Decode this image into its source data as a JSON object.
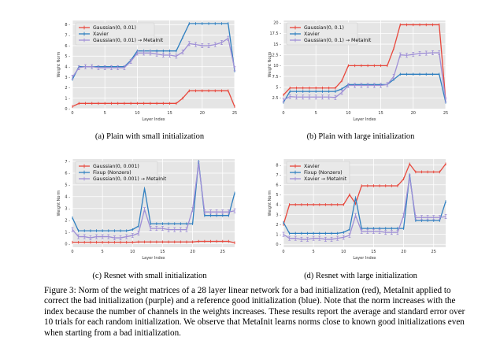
{
  "colors": {
    "red": "#e8483d",
    "blue": "#2f7fc0",
    "purple": "#9f8fd6",
    "plot_bg": "#e5e5e5",
    "grid": "#ffffff"
  },
  "chart_data": [
    {
      "type": "line",
      "caption": "(a) Plain with small initialization",
      "xlabel": "Layer Index",
      "ylabel": "Weight Norm",
      "xlim": [
        0,
        25
      ],
      "ylim": [
        0,
        8.4
      ],
      "xticks": [
        0,
        5,
        10,
        15,
        20,
        25
      ],
      "yticks": [
        0,
        1,
        2,
        3,
        4,
        5,
        6,
        7,
        8
      ],
      "x": [
        0,
        1,
        2,
        3,
        4,
        5,
        6,
        7,
        8,
        9,
        10,
        11,
        12,
        13,
        14,
        15,
        16,
        17,
        18,
        19,
        20,
        21,
        22,
        23,
        24,
        25
      ],
      "series": [
        {
          "name": "Gaussian(0, 0.01)",
          "color": "red",
          "err": false,
          "values": [
            0.2,
            0.5,
            0.5,
            0.5,
            0.5,
            0.5,
            0.5,
            0.5,
            0.5,
            0.5,
            0.5,
            0.5,
            0.5,
            0.5,
            0.5,
            0.5,
            0.5,
            1.0,
            1.7,
            1.7,
            1.7,
            1.7,
            1.7,
            1.7,
            1.7,
            0.2
          ]
        },
        {
          "name": "Xavier",
          "color": "blue",
          "err": false,
          "values": [
            2.8,
            4.0,
            4.0,
            4.0,
            4.0,
            4.0,
            4.0,
            4.0,
            4.0,
            4.6,
            5.5,
            5.5,
            5.5,
            5.5,
            5.5,
            5.5,
            5.5,
            6.8,
            8.1,
            8.1,
            8.1,
            8.1,
            8.1,
            8.1,
            8.1,
            3.6
          ]
        },
        {
          "name": "Gaussian(0, 0.01) → MetaInit",
          "color": "purple",
          "err": true,
          "values": [
            3.0,
            3.9,
            4.0,
            4.0,
            3.9,
            3.9,
            3.9,
            3.9,
            3.9,
            4.5,
            5.3,
            5.3,
            5.3,
            5.2,
            5.1,
            5.1,
            5.0,
            5.4,
            6.2,
            6.1,
            6.0,
            6.0,
            6.1,
            6.3,
            6.7,
            3.8
          ]
        }
      ]
    },
    {
      "type": "line",
      "caption": "(b) Plain with large initialization",
      "xlabel": "Layer Index",
      "ylabel": "Weight Norm",
      "xlim": [
        0,
        25
      ],
      "ylim": [
        0,
        20.5
      ],
      "xticks": [
        0,
        5,
        10,
        15,
        20,
        25
      ],
      "yticks": [
        2.5,
        5.0,
        7.5,
        10.0,
        12.5,
        15.0,
        17.5,
        20.0
      ],
      "x": [
        0,
        1,
        2,
        3,
        4,
        5,
        6,
        7,
        8,
        9,
        10,
        11,
        12,
        13,
        14,
        15,
        16,
        17,
        18,
        19,
        20,
        21,
        22,
        23,
        24,
        25
      ],
      "series": [
        {
          "name": "Gaussian(0, 0.1)",
          "color": "red",
          "err": false,
          "values": [
            3.2,
            4.8,
            4.8,
            4.8,
            4.8,
            4.8,
            4.8,
            4.8,
            4.8,
            6.5,
            10.0,
            10.0,
            10.0,
            10.0,
            10.0,
            10.0,
            10.0,
            14.0,
            19.5,
            19.5,
            19.5,
            19.5,
            19.5,
            19.5,
            19.5,
            2.0
          ]
        },
        {
          "name": "Xavier",
          "color": "blue",
          "err": false,
          "values": [
            1.5,
            4.0,
            4.0,
            4.0,
            4.0,
            4.0,
            4.0,
            4.0,
            4.0,
            4.6,
            5.6,
            5.6,
            5.6,
            5.6,
            5.6,
            5.6,
            5.6,
            6.8,
            8.0,
            8.0,
            8.0,
            8.0,
            8.0,
            8.0,
            8.0,
            1.5
          ]
        },
        {
          "name": "Gaussian(0, 0.1) → MetaInit",
          "color": "purple",
          "err": true,
          "values": [
            2.0,
            2.8,
            2.7,
            2.7,
            2.7,
            2.7,
            2.7,
            2.7,
            2.6,
            3.8,
            5.4,
            5.4,
            5.4,
            5.4,
            5.4,
            5.4,
            5.6,
            7.5,
            12.5,
            12.4,
            12.6,
            12.8,
            12.9,
            13.0,
            13.0,
            2.0
          ]
        }
      ]
    },
    {
      "type": "line",
      "caption": "(c) Resnet with small initialization",
      "xlabel": "Layer Index",
      "ylabel": "Weight Norm",
      "xlim": [
        0,
        27
      ],
      "ylim": [
        -0.3,
        7.2
      ],
      "xticks": [
        0,
        5,
        10,
        15,
        20,
        25
      ],
      "yticks": [
        0,
        1,
        2,
        3,
        4,
        5,
        6,
        7
      ],
      "x": [
        0,
        1,
        2,
        3,
        4,
        5,
        6,
        7,
        8,
        9,
        10,
        11,
        12,
        13,
        14,
        15,
        16,
        17,
        18,
        19,
        20,
        21,
        22,
        23,
        24,
        25,
        26,
        27
      ],
      "series": [
        {
          "name": "Gaussian(0, 0.001)",
          "color": "red",
          "err": false,
          "values": [
            0.12,
            0.12,
            0.12,
            0.12,
            0.12,
            0.12,
            0.12,
            0.12,
            0.12,
            0.12,
            0.12,
            0.15,
            0.15,
            0.15,
            0.15,
            0.15,
            0.15,
            0.15,
            0.15,
            0.15,
            0.15,
            0.2,
            0.2,
            0.2,
            0.2,
            0.2,
            0.2,
            0.08
          ]
        },
        {
          "name": "Fixup (Nonzero)",
          "color": "blue",
          "err": false,
          "values": [
            2.2,
            1.1,
            1.1,
            1.1,
            1.1,
            1.1,
            1.1,
            1.1,
            1.1,
            1.1,
            1.2,
            1.5,
            4.7,
            1.7,
            1.7,
            1.7,
            1.7,
            1.7,
            1.7,
            1.7,
            1.7,
            7.0,
            2.4,
            2.4,
            2.4,
            2.4,
            2.4,
            4.3
          ]
        },
        {
          "name": "Gaussian(0, 0.001) → MetaInit",
          "color": "purple",
          "err": true,
          "values": [
            1.2,
            0.6,
            0.6,
            0.5,
            0.6,
            0.6,
            0.6,
            0.5,
            0.5,
            0.6,
            0.7,
            0.9,
            2.9,
            1.3,
            1.3,
            1.3,
            1.2,
            1.2,
            1.2,
            1.2,
            2.9,
            6.8,
            2.7,
            2.7,
            2.7,
            2.7,
            2.7,
            2.8
          ]
        }
      ]
    },
    {
      "type": "line",
      "caption": "(d) Resnet with large initialization",
      "xlabel": "Layer Index",
      "ylabel": "Weight Norm",
      "xlim": [
        0,
        27
      ],
      "ylim": [
        -0.3,
        8.6
      ],
      "xticks": [
        0,
        5,
        10,
        15,
        20,
        25
      ],
      "yticks": [
        0,
        1,
        2,
        3,
        4,
        5,
        6,
        7,
        8
      ],
      "x": [
        0,
        1,
        2,
        3,
        4,
        5,
        6,
        7,
        8,
        9,
        10,
        11,
        12,
        13,
        14,
        15,
        16,
        17,
        18,
        19,
        20,
        21,
        22,
        23,
        24,
        25,
        26,
        27
      ],
      "series": [
        {
          "name": "Xavier",
          "color": "red",
          "err": false,
          "values": [
            2.0,
            4.0,
            4.0,
            4.0,
            4.0,
            4.0,
            4.0,
            4.0,
            4.0,
            4.0,
            4.0,
            5.0,
            4.1,
            5.9,
            5.9,
            5.9,
            5.9,
            5.9,
            5.9,
            5.9,
            6.6,
            8.1,
            7.3,
            7.3,
            7.3,
            7.3,
            7.3,
            8.1
          ]
        },
        {
          "name": "Fixup (Nonzero)",
          "color": "blue",
          "err": false,
          "values": [
            2.2,
            1.1,
            1.1,
            1.1,
            1.1,
            1.1,
            1.1,
            1.1,
            1.1,
            1.1,
            1.2,
            1.5,
            4.7,
            1.6,
            1.6,
            1.6,
            1.6,
            1.6,
            1.6,
            1.6,
            1.6,
            7.0,
            2.4,
            2.4,
            2.4,
            2.4,
            2.4,
            4.3
          ]
        },
        {
          "name": "Xavier → MetaInit",
          "color": "purple",
          "err": true,
          "values": [
            1.0,
            0.6,
            0.6,
            0.5,
            0.5,
            0.6,
            0.6,
            0.5,
            0.5,
            0.6,
            0.7,
            0.9,
            2.9,
            1.3,
            1.3,
            1.3,
            1.3,
            1.2,
            1.2,
            1.2,
            2.9,
            6.8,
            2.7,
            2.7,
            2.7,
            2.7,
            2.7,
            2.8
          ]
        }
      ]
    }
  ],
  "figure_caption": "Figure 3: Norm of the weight matrices of a 28 layer linear network for a bad initialization (red), MetaInit applied to correct the bad initialization (purple) and a reference good initialization (blue). Note that the norm increases with the index because the number of channels in the weights increases. These results report the average and standard error over 10 trials for each random initialization. We observe that MetaInit learns norms close to known good initializations even when starting from a bad initialization."
}
